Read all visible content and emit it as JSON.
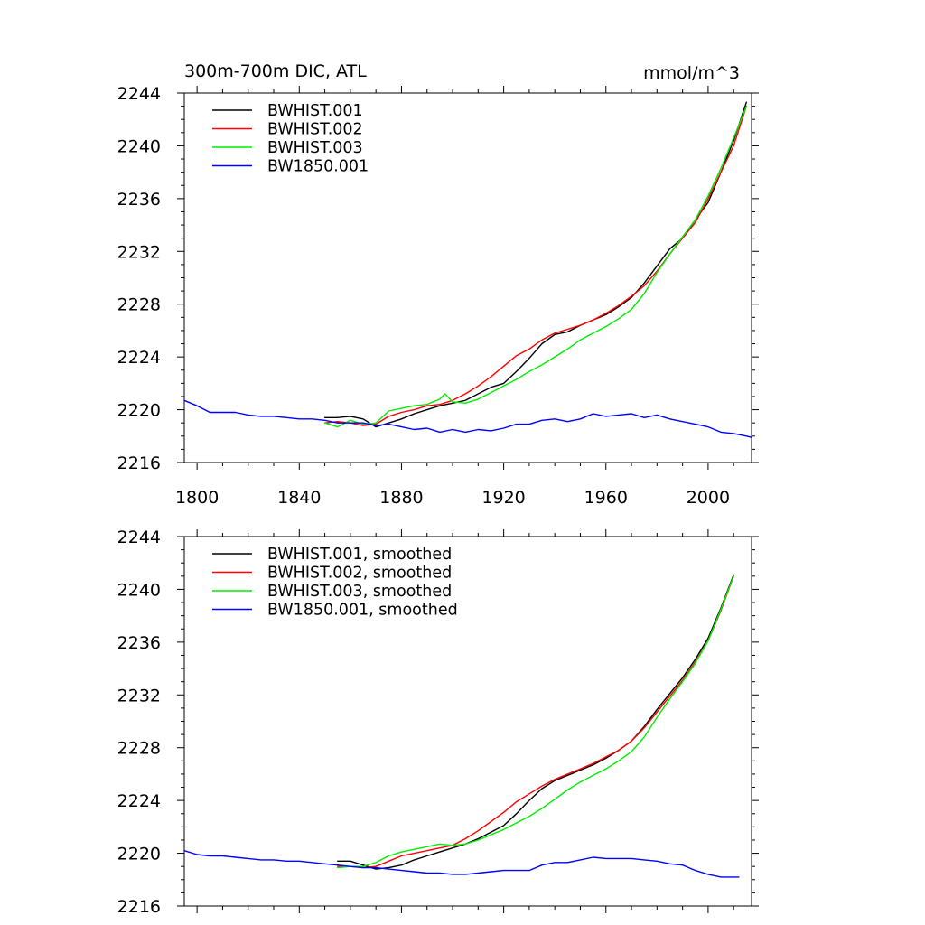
{
  "chart_data": [
    {
      "type": "line",
      "title": "300m-700m DIC, ATL",
      "units": "mmol/m^3",
      "xlim": [
        1795,
        2017
      ],
      "ylim": [
        2216,
        2244
      ],
      "xticks": [
        1800,
        1840,
        1880,
        1920,
        1960,
        2000
      ],
      "yticks": [
        2216,
        2220,
        2224,
        2228,
        2232,
        2236,
        2240,
        2244
      ],
      "legend_position": "top-left",
      "grid": false,
      "series": [
        {
          "name": "BWHIST.001",
          "color": "#000000",
          "x": [
            1850,
            1855,
            1860,
            1865,
            1870,
            1875,
            1880,
            1885,
            1890,
            1895,
            1900,
            1905,
            1910,
            1915,
            1920,
            1925,
            1930,
            1935,
            1940,
            1945,
            1950,
            1955,
            1960,
            1965,
            1970,
            1975,
            1980,
            1985,
            1990,
            1995,
            2000,
            2005,
            2010,
            2015
          ],
          "y": [
            2219.4,
            2219.4,
            2219.5,
            2219.3,
            2218.7,
            2219.0,
            2219.3,
            2219.7,
            2220.0,
            2220.3,
            2220.5,
            2220.7,
            2221.2,
            2221.7,
            2222.0,
            2222.9,
            2223.9,
            2225.0,
            2225.7,
            2225.9,
            2226.4,
            2226.8,
            2227.2,
            2227.8,
            2228.5,
            2229.6,
            2230.9,
            2232.2,
            2233.0,
            2234.4,
            2235.7,
            2238.0,
            2240.4,
            2243.3
          ]
        },
        {
          "name": "BWHIST.002",
          "color": "#ff0000",
          "x": [
            1850,
            1855,
            1860,
            1865,
            1870,
            1875,
            1880,
            1885,
            1890,
            1895,
            1900,
            1905,
            1910,
            1915,
            1920,
            1925,
            1930,
            1935,
            1940,
            1945,
            1950,
            1955,
            1960,
            1965,
            1970,
            1975,
            1980,
            1985,
            1990,
            1995,
            2000,
            2005,
            2010,
            2015
          ],
          "y": [
            2219.0,
            2219.1,
            2219.0,
            2218.8,
            2218.9,
            2219.5,
            2219.8,
            2220.0,
            2220.3,
            2220.4,
            2220.7,
            2221.2,
            2221.8,
            2222.5,
            2223.3,
            2224.1,
            2224.6,
            2225.3,
            2225.8,
            2226.1,
            2226.4,
            2226.8,
            2227.3,
            2227.9,
            2228.6,
            2229.4,
            2230.5,
            2231.8,
            2233.0,
            2234.2,
            2236.0,
            2238.0,
            2240.0,
            2243.0
          ]
        },
        {
          "name": "BWHIST.003",
          "color": "#00ee00",
          "x": [
            1850,
            1855,
            1860,
            1865,
            1870,
            1875,
            1880,
            1885,
            1890,
            1895,
            1897,
            1900,
            1905,
            1910,
            1915,
            1920,
            1925,
            1930,
            1935,
            1940,
            1945,
            1950,
            1955,
            1960,
            1965,
            1970,
            1975,
            1980,
            1985,
            1990,
            1995,
            2000,
            2005,
            2010,
            2015
          ],
          "y": [
            2219.0,
            2218.7,
            2219.2,
            2218.9,
            2219.0,
            2219.9,
            2220.1,
            2220.3,
            2220.4,
            2220.8,
            2221.2,
            2220.6,
            2220.5,
            2220.8,
            2221.3,
            2221.8,
            2222.3,
            2222.9,
            2223.4,
            2224.0,
            2224.6,
            2225.3,
            2225.8,
            2226.3,
            2226.9,
            2227.6,
            2228.8,
            2230.4,
            2231.8,
            2233.1,
            2234.4,
            2236.2,
            2238.3,
            2240.6,
            2243.0
          ]
        },
        {
          "name": "BW1850.001",
          "color": "#0000ff",
          "x": [
            1795,
            1800,
            1805,
            1810,
            1815,
            1820,
            1825,
            1830,
            1835,
            1840,
            1845,
            1850,
            1855,
            1860,
            1865,
            1870,
            1875,
            1880,
            1885,
            1890,
            1895,
            1900,
            1905,
            1910,
            1915,
            1920,
            1925,
            1930,
            1935,
            1940,
            1945,
            1950,
            1955,
            1960,
            1965,
            1970,
            1975,
            1980,
            1985,
            1990,
            1995,
            2000,
            2005,
            2010,
            2015,
            2017
          ],
          "y": [
            2220.7,
            2220.3,
            2219.8,
            2219.8,
            2219.8,
            2219.6,
            2219.5,
            2219.5,
            2219.4,
            2219.3,
            2219.3,
            2219.2,
            2219.0,
            2219.0,
            2219.0,
            2218.8,
            2218.9,
            2218.7,
            2218.5,
            2218.6,
            2218.3,
            2218.5,
            2218.3,
            2218.5,
            2218.4,
            2218.6,
            2218.9,
            2218.9,
            2219.2,
            2219.3,
            2219.1,
            2219.3,
            2219.7,
            2219.5,
            2219.6,
            2219.7,
            2219.4,
            2219.6,
            2219.3,
            2219.1,
            2218.9,
            2218.7,
            2218.3,
            2218.2,
            2218.0,
            2217.9
          ]
        }
      ]
    },
    {
      "type": "line",
      "title": "",
      "units": "",
      "xlim": [
        1795,
        2017
      ],
      "ylim": [
        2216,
        2244
      ],
      "xticks": [
        1800,
        1840,
        1880,
        1920,
        1960,
        2000
      ],
      "yticks": [
        2216,
        2220,
        2224,
        2228,
        2232,
        2236,
        2240,
        2244
      ],
      "legend_position": "top-left",
      "grid": false,
      "series": [
        {
          "name": "BWHIST.001, smoothed",
          "color": "#000000",
          "x": [
            1855,
            1860,
            1865,
            1870,
            1875,
            1880,
            1885,
            1890,
            1895,
            1900,
            1905,
            1910,
            1915,
            1920,
            1925,
            1930,
            1935,
            1940,
            1945,
            1950,
            1955,
            1960,
            1965,
            1970,
            1975,
            1980,
            1985,
            1990,
            1995,
            2000,
            2005,
            2010
          ],
          "y": [
            2219.4,
            2219.4,
            2219.1,
            2218.8,
            2218.9,
            2219.1,
            2219.5,
            2219.8,
            2220.1,
            2220.4,
            2220.7,
            2221.1,
            2221.6,
            2222.1,
            2223.0,
            2224.0,
            2224.9,
            2225.5,
            2225.9,
            2226.3,
            2226.7,
            2227.2,
            2227.8,
            2228.5,
            2229.6,
            2230.9,
            2232.1,
            2233.3,
            2234.7,
            2236.3,
            2238.6,
            2241.1
          ]
        },
        {
          "name": "BWHIST.002, smoothed",
          "color": "#ff0000",
          "x": [
            1855,
            1860,
            1865,
            1870,
            1875,
            1880,
            1885,
            1890,
            1895,
            1900,
            1905,
            1910,
            1915,
            1920,
            1925,
            1930,
            1935,
            1940,
            1945,
            1950,
            1955,
            1960,
            1965,
            1970,
            1975,
            1980,
            1985,
            1990,
            1995,
            2000,
            2005,
            2010
          ],
          "y": [
            2219.0,
            2219.0,
            2218.9,
            2219.0,
            2219.4,
            2219.8,
            2220.0,
            2220.2,
            2220.4,
            2220.6,
            2221.1,
            2221.7,
            2222.4,
            2223.1,
            2223.9,
            2224.5,
            2225.1,
            2225.6,
            2226.0,
            2226.4,
            2226.8,
            2227.3,
            2227.8,
            2228.5,
            2229.5,
            2230.7,
            2231.9,
            2233.1,
            2234.5,
            2236.1,
            2238.4,
            2241.0
          ]
        },
        {
          "name": "BWHIST.003, smoothed",
          "color": "#00ee00",
          "x": [
            1855,
            1860,
            1865,
            1870,
            1875,
            1880,
            1885,
            1890,
            1895,
            1900,
            1905,
            1910,
            1915,
            1920,
            1925,
            1930,
            1935,
            1940,
            1945,
            1950,
            1955,
            1960,
            1965,
            1970,
            1975,
            1980,
            1985,
            1990,
            1995,
            2000,
            2005,
            2010
          ],
          "y": [
            2218.9,
            2219.0,
            2219.0,
            2219.3,
            2219.8,
            2220.1,
            2220.3,
            2220.5,
            2220.7,
            2220.6,
            2220.7,
            2221.0,
            2221.4,
            2221.8,
            2222.3,
            2222.8,
            2223.4,
            2224.1,
            2224.8,
            2225.4,
            2225.9,
            2226.4,
            2227.0,
            2227.7,
            2228.8,
            2230.3,
            2231.7,
            2233.0,
            2234.4,
            2236.1,
            2238.5,
            2241.0
          ]
        },
        {
          "name": "BW1850.001, smoothed",
          "color": "#0000ff",
          "x": [
            1795,
            1800,
            1805,
            1810,
            1815,
            1820,
            1825,
            1830,
            1835,
            1840,
            1845,
            1850,
            1855,
            1860,
            1865,
            1870,
            1875,
            1880,
            1885,
            1890,
            1895,
            1900,
            1905,
            1910,
            1915,
            1920,
            1925,
            1930,
            1935,
            1940,
            1945,
            1950,
            1955,
            1960,
            1965,
            1970,
            1975,
            1980,
            1985,
            1990,
            1995,
            2000,
            2005,
            2010,
            2012
          ],
          "y": [
            2220.2,
            2219.9,
            2219.8,
            2219.8,
            2219.7,
            2219.6,
            2219.5,
            2219.5,
            2219.4,
            2219.4,
            2219.3,
            2219.2,
            2219.1,
            2219.0,
            2218.9,
            2218.9,
            2218.8,
            2218.7,
            2218.6,
            2218.5,
            2218.5,
            2218.4,
            2218.4,
            2218.5,
            2218.6,
            2218.7,
            2218.7,
            2218.7,
            2219.1,
            2219.3,
            2219.3,
            2219.5,
            2219.7,
            2219.6,
            2219.6,
            2219.6,
            2219.5,
            2219.4,
            2219.2,
            2219.1,
            2218.7,
            2218.4,
            2218.2,
            2218.2,
            2218.2
          ]
        }
      ]
    }
  ]
}
